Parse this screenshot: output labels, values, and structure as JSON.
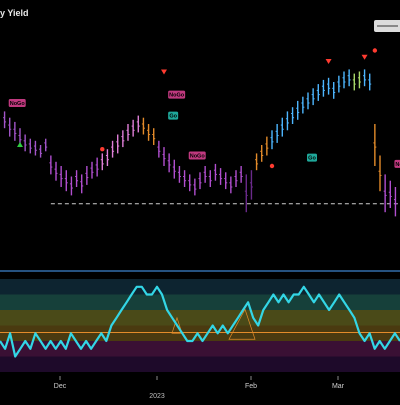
{
  "title": "y Yield",
  "colors": {
    "background": "#000000",
    "divider": "#4da3ff",
    "oscillator_line": "#33d6e6",
    "dashed_level": "#d0d0d0",
    "go_badge": "#1fa89a",
    "nogo_badge": "#c0397f",
    "up_triangle": "#2ecc40",
    "down_triangle": "#ff3b30",
    "dot": "#ff3b30",
    "mid_line": "#e38b2a"
  },
  "chart_data": {
    "type": "line",
    "x_tick_labels": [
      "Dec",
      "Feb",
      "Mar"
    ],
    "year_label": "2023",
    "price_bars": {
      "description_units": "price index 0-100",
      "dashed_support_level": 22,
      "segments": [
        {
          "color": "#a255c9",
          "bars": [
            [
              66,
              58
            ],
            [
              63,
              54
            ],
            [
              61,
              52
            ],
            [
              58,
              49
            ],
            [
              55,
              47
            ],
            [
              53,
              46
            ],
            [
              52,
              45
            ],
            [
              50,
              44
            ],
            [
              53,
              47
            ]
          ]
        },
        {
          "color": "#b14fcf",
          "bars": [
            [
              45,
              36
            ],
            [
              42,
              33
            ],
            [
              40,
              30
            ],
            [
              38,
              28
            ],
            [
              35,
              26
            ],
            [
              38,
              30
            ],
            [
              36,
              27
            ],
            [
              40,
              31
            ],
            [
              42,
              34
            ],
            [
              44,
              35
            ]
          ]
        },
        {
          "color": "#e07fd8",
          "bars": [
            [
              46,
              38
            ],
            [
              48,
              40
            ],
            [
              52,
              44
            ],
            [
              55,
              46
            ],
            [
              57,
              49
            ],
            [
              60,
              52
            ],
            [
              62,
              54
            ],
            [
              64,
              56
            ]
          ]
        },
        {
          "color": "#e38b2a",
          "bars": [
            [
              63,
              55
            ],
            [
              60,
              52
            ],
            [
              58,
              50
            ]
          ]
        },
        {
          "color": "#b14fcf",
          "bars": [
            [
              52,
              44
            ],
            [
              49,
              40
            ],
            [
              46,
              37
            ],
            [
              43,
              34
            ],
            [
              40,
              32
            ],
            [
              38,
              30
            ],
            [
              36,
              28
            ],
            [
              34,
              26
            ],
            [
              37,
              29
            ],
            [
              40,
              32
            ],
            [
              38,
              30
            ],
            [
              41,
              33
            ],
            [
              39,
              31
            ],
            [
              37,
              29
            ],
            [
              35,
              27
            ],
            [
              38,
              30
            ],
            [
              40,
              32
            ]
          ]
        },
        {
          "color": "#6a2a8a",
          "bars": [
            [
              36,
              18
            ],
            [
              38,
              24
            ]
          ]
        },
        {
          "color": "#e38b2a",
          "bars": [
            [
              46,
              38
            ],
            [
              50,
              42
            ],
            [
              54,
              45
            ]
          ]
        },
        {
          "color": "#4db6ff",
          "bars": [
            [
              57,
              48
            ],
            [
              60,
              51
            ],
            [
              63,
              54
            ],
            [
              66,
              57
            ],
            [
              68,
              60
            ],
            [
              71,
              62
            ],
            [
              73,
              65
            ],
            [
              75,
              67
            ],
            [
              77,
              69
            ],
            [
              79,
              71
            ],
            [
              81,
              73
            ],
            [
              82,
              74
            ],
            [
              80,
              72
            ],
            [
              83,
              75
            ],
            [
              85,
              77
            ],
            [
              86,
              78
            ]
          ]
        },
        {
          "color": "#a8d86a",
          "bars": [
            [
              84,
              76
            ],
            [
              85,
              77
            ]
          ]
        },
        {
          "color": "#4db6ff",
          "bars": [
            [
              86,
              78
            ],
            [
              84,
              76
            ]
          ]
        },
        {
          "color": "#e38b2a",
          "bars": [
            [
              60,
              40
            ],
            [
              45,
              28
            ]
          ]
        },
        {
          "color": "#b14fcf",
          "bars": [
            [
              36,
              18
            ],
            [
              33,
              20
            ],
            [
              30,
              16
            ]
          ]
        }
      ],
      "ylim": [
        0,
        100
      ]
    },
    "annotations": [
      {
        "kind": "badge",
        "label": "NoGo",
        "bar": 1,
        "level": 70
      },
      {
        "kind": "badge",
        "label": "NoGo",
        "bar": 32,
        "level": 74
      },
      {
        "kind": "badge",
        "label": "Go",
        "bar": 32,
        "level": 64
      },
      {
        "kind": "badge",
        "label": "NoGo",
        "bar": 36,
        "level": 45
      },
      {
        "kind": "badge",
        "label": "Go",
        "bar": 59,
        "level": 44
      },
      {
        "kind": "badge",
        "label": "NoGo",
        "bar": 79,
        "level": 41
      },
      {
        "kind": "triangle-up",
        "bar": 3,
        "level": 50
      },
      {
        "kind": "triangle-down",
        "bar": 31,
        "level": 85
      },
      {
        "kind": "triangle-down",
        "bar": 63,
        "level": 90
      },
      {
        "kind": "triangle-down",
        "bar": 70,
        "level": 92
      },
      {
        "kind": "dot",
        "bar": 19,
        "level": 48
      },
      {
        "kind": "dot",
        "bar": 52,
        "level": 40
      },
      {
        "kind": "dot",
        "bar": 72,
        "level": 95
      }
    ],
    "oscillator": {
      "values": [
        -2,
        -3,
        -1,
        -4,
        -3,
        -2,
        -3,
        -1,
        -2,
        -3,
        -2,
        -3,
        -2,
        -3,
        -1,
        -2,
        -3,
        -2,
        -3,
        -2,
        -1,
        -2,
        0,
        1,
        2,
        3,
        4,
        5,
        5,
        4,
        4,
        5,
        4,
        2,
        1,
        0,
        -1,
        -2,
        -2,
        -1,
        -2,
        -1,
        0,
        -1,
        0,
        -1,
        0,
        1,
        2,
        3,
        1,
        0,
        2,
        3,
        4,
        3,
        4,
        3,
        4,
        4,
        5,
        4,
        3,
        4,
        3,
        2,
        3,
        4,
        3,
        2,
        1,
        -1,
        -2,
        -1,
        -3,
        -2,
        -3,
        -2,
        -1,
        -2
      ],
      "ylim": [
        -6,
        6
      ],
      "zero_line": 0
    }
  }
}
